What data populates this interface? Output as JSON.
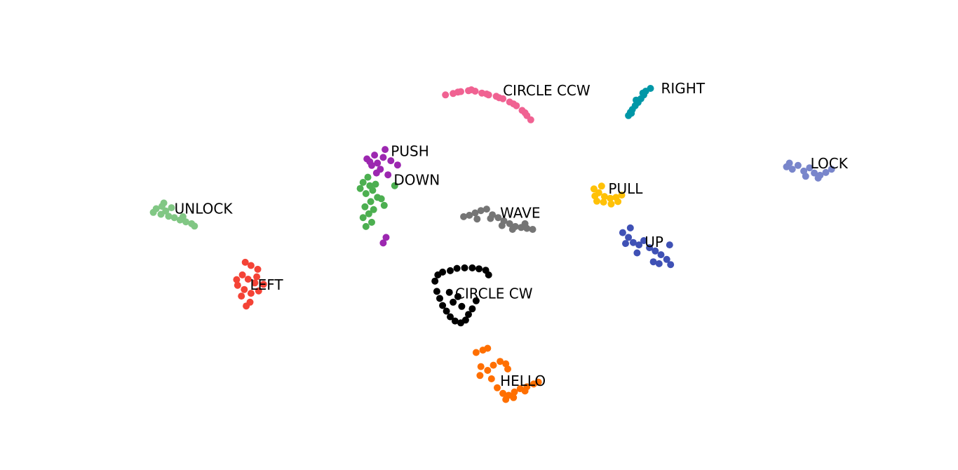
{
  "chart_data": {
    "type": "scatter",
    "title": "",
    "xlabel": "",
    "ylabel": "",
    "xlim": [
      0,
      100
    ],
    "ylim": [
      0,
      100
    ],
    "axes_visible": false,
    "grid": false,
    "legend": "none",
    "series": [
      {
        "name": "CIRCLE CCW",
        "color": "#f06292",
        "label_at": [
          52.5,
          80.5
        ],
        "points": [
          [
            46.5,
            79.8
          ],
          [
            47.3,
            80.1
          ],
          [
            48.1,
            80.5
          ],
          [
            48.9,
            80.7
          ],
          [
            49.6,
            80.6
          ],
          [
            50.3,
            80.2
          ],
          [
            51.0,
            79.8
          ],
          [
            51.8,
            79.5
          ],
          [
            52.5,
            79.0
          ],
          [
            53.2,
            78.3
          ],
          [
            53.9,
            77.5
          ],
          [
            54.5,
            76.5
          ],
          [
            55.0,
            75.4
          ],
          [
            55.4,
            74.5
          ],
          [
            47.8,
            80.4
          ],
          [
            49.2,
            80.9
          ],
          [
            50.8,
            80.0
          ],
          [
            52.1,
            79.2
          ],
          [
            53.6,
            77.9
          ],
          [
            54.8,
            76.0
          ]
        ]
      },
      {
        "name": "RIGHT",
        "color": "#0097a7",
        "label_at": [
          69.0,
          81.0
        ],
        "points": [
          [
            67.4,
            80.6
          ],
          [
            67.9,
            81.2
          ],
          [
            67.2,
            79.8
          ],
          [
            66.9,
            79.0
          ],
          [
            66.6,
            78.2
          ],
          [
            66.3,
            77.5
          ],
          [
            66.0,
            76.7
          ],
          [
            65.8,
            76.1
          ],
          [
            65.6,
            75.4
          ],
          [
            66.4,
            78.7
          ],
          [
            67.1,
            80.2
          ],
          [
            65.9,
            75.9
          ]
        ]
      },
      {
        "name": "PUSH",
        "color": "#9c27b0",
        "label_at": [
          40.8,
          67.6
        ],
        "points": [
          [
            38.3,
            66.2
          ],
          [
            39.1,
            67.0
          ],
          [
            40.0,
            66.5
          ],
          [
            39.4,
            65.3
          ],
          [
            38.8,
            64.8
          ],
          [
            39.7,
            64.0
          ],
          [
            40.8,
            65.8
          ],
          [
            41.5,
            64.9
          ],
          [
            40.2,
            68.2
          ],
          [
            38.6,
            65.6
          ],
          [
            39.3,
            63.2
          ],
          [
            40.5,
            62.8
          ],
          [
            40.3,
            49.5
          ],
          [
            40.0,
            48.3
          ]
        ]
      },
      {
        "name": "DOWN",
        "color": "#4caf50",
        "label_at": [
          41.1,
          61.5
        ],
        "points": [
          [
            37.9,
            61.2
          ],
          [
            38.6,
            60.5
          ],
          [
            37.6,
            59.9
          ],
          [
            38.2,
            58.8
          ],
          [
            38.9,
            59.5
          ],
          [
            39.4,
            58.0
          ],
          [
            38.7,
            57.1
          ],
          [
            38.1,
            56.0
          ],
          [
            39.0,
            55.4
          ],
          [
            38.5,
            54.5
          ],
          [
            37.9,
            53.7
          ],
          [
            38.8,
            52.7
          ],
          [
            39.8,
            57.7
          ],
          [
            39.2,
            60.8
          ],
          [
            38.4,
            62.3
          ],
          [
            41.2,
            60.5
          ],
          [
            40.1,
            56.3
          ],
          [
            38.2,
            51.8
          ]
        ]
      },
      {
        "name": "UNLOCK",
        "color": "#81c784",
        "label_at": [
          18.2,
          55.4
        ],
        "points": [
          [
            16.3,
            55.6
          ],
          [
            16.9,
            56.1
          ],
          [
            17.3,
            55.1
          ],
          [
            16.8,
            54.4
          ],
          [
            17.6,
            54.0
          ],
          [
            18.2,
            53.7
          ],
          [
            18.8,
            53.2
          ],
          [
            19.4,
            52.8
          ],
          [
            20.0,
            52.4
          ],
          [
            17.1,
            56.8
          ],
          [
            16.0,
            54.8
          ],
          [
            17.9,
            55.8
          ],
          [
            19.1,
            53.9
          ],
          [
            20.3,
            51.9
          ]
        ]
      },
      {
        "name": "LOCK",
        "color": "#7986cb",
        "label_at": [
          84.6,
          65.0
        ],
        "points": [
          [
            82.1,
            64.5
          ],
          [
            82.7,
            64.0
          ],
          [
            83.3,
            64.8
          ],
          [
            83.9,
            63.6
          ],
          [
            84.5,
            64.3
          ],
          [
            85.0,
            63.2
          ],
          [
            85.6,
            62.7
          ],
          [
            86.2,
            63.3
          ],
          [
            86.8,
            64.0
          ],
          [
            82.4,
            65.3
          ],
          [
            84.1,
            62.5
          ],
          [
            85.4,
            62.1
          ]
        ]
      },
      {
        "name": "PULL",
        "color": "#ffc107",
        "label_at": [
          63.5,
          59.6
        ],
        "points": [
          [
            62.0,
            59.8
          ],
          [
            62.5,
            59.0
          ],
          [
            63.1,
            58.2
          ],
          [
            63.7,
            57.8
          ],
          [
            64.3,
            58.0
          ],
          [
            64.9,
            58.5
          ],
          [
            62.3,
            57.2
          ],
          [
            63.0,
            57.0
          ],
          [
            63.8,
            56.6
          ],
          [
            64.5,
            57.1
          ],
          [
            62.8,
            60.4
          ],
          [
            62.1,
            58.3
          ]
        ]
      },
      {
        "name": "WAVE",
        "color": "#757575",
        "label_at": [
          52.2,
          54.5
        ],
        "points": [
          [
            48.4,
            53.9
          ],
          [
            49.0,
            54.2
          ],
          [
            49.6,
            54.7
          ],
          [
            50.2,
            55.2
          ],
          [
            50.8,
            55.5
          ],
          [
            51.4,
            54.3
          ],
          [
            52.0,
            53.7
          ],
          [
            52.6,
            53.0
          ],
          [
            53.2,
            52.4
          ],
          [
            53.8,
            51.8
          ],
          [
            54.4,
            51.6
          ],
          [
            55.0,
            51.4
          ],
          [
            55.6,
            51.2
          ],
          [
            49.8,
            53.4
          ],
          [
            51.2,
            53.5
          ],
          [
            52.4,
            52.0
          ],
          [
            53.5,
            51.2
          ],
          [
            54.8,
            52.4
          ]
        ]
      },
      {
        "name": "UP",
        "color": "#3f51b5",
        "label_at": [
          67.3,
          48.3
        ],
        "points": [
          [
            65.0,
            50.5
          ],
          [
            65.6,
            49.5
          ],
          [
            66.1,
            48.4
          ],
          [
            66.7,
            47.9
          ],
          [
            67.2,
            48.8
          ],
          [
            67.8,
            47.3
          ],
          [
            68.4,
            46.6
          ],
          [
            69.0,
            45.8
          ],
          [
            69.6,
            44.8
          ],
          [
            68.8,
            43.9
          ],
          [
            68.2,
            44.3
          ],
          [
            69.9,
            47.9
          ],
          [
            65.3,
            48.2
          ],
          [
            66.5,
            46.2
          ],
          [
            70.0,
            43.7
          ],
          [
            65.8,
            51.5
          ]
        ]
      },
      {
        "name": "LEFT",
        "color": "#f44336",
        "label_at": [
          26.1,
          39.2
        ],
        "points": [
          [
            25.6,
            44.2
          ],
          [
            26.2,
            43.5
          ],
          [
            26.9,
            42.7
          ],
          [
            25.3,
            41.5
          ],
          [
            25.9,
            40.6
          ],
          [
            26.6,
            39.8
          ],
          [
            24.8,
            39.3
          ],
          [
            25.5,
            38.4
          ],
          [
            26.2,
            37.6
          ],
          [
            27.0,
            38.1
          ],
          [
            27.5,
            39.5
          ],
          [
            25.2,
            37.0
          ],
          [
            26.1,
            35.7
          ],
          [
            25.7,
            34.9
          ],
          [
            24.7,
            40.5
          ],
          [
            26.8,
            41.1
          ]
        ]
      },
      {
        "name": "CIRCLE CW",
        "color": "#000000",
        "label_at": [
          47.5,
          37.3
        ],
        "points": [
          [
            45.4,
            40.2
          ],
          [
            45.7,
            41.5
          ],
          [
            46.2,
            42.1
          ],
          [
            47.0,
            42.4
          ],
          [
            47.7,
            42.9
          ],
          [
            48.5,
            43.0
          ],
          [
            49.3,
            43.0
          ],
          [
            50.0,
            42.8
          ],
          [
            50.7,
            42.5
          ],
          [
            51.0,
            41.5
          ],
          [
            45.6,
            38.0
          ],
          [
            45.9,
            36.5
          ],
          [
            46.2,
            35.0
          ],
          [
            46.6,
            33.8
          ],
          [
            47.0,
            32.6
          ],
          [
            47.5,
            31.7
          ],
          [
            48.1,
            31.3
          ],
          [
            48.6,
            31.9
          ],
          [
            48.9,
            33.1
          ],
          [
            49.3,
            34.3
          ],
          [
            47.3,
            35.7
          ],
          [
            48.2,
            34.8
          ],
          [
            47.8,
            36.9
          ],
          [
            46.9,
            37.8
          ],
          [
            49.7,
            36.0
          ]
        ]
      },
      {
        "name": "HELLO",
        "color": "#ff6f00",
        "label_at": [
          52.2,
          18.7
        ],
        "points": [
          [
            49.7,
            25.0
          ],
          [
            50.4,
            25.5
          ],
          [
            50.9,
            25.9
          ],
          [
            50.2,
            22.0
          ],
          [
            50.9,
            21.2
          ],
          [
            51.5,
            22.3
          ],
          [
            52.2,
            23.1
          ],
          [
            52.8,
            22.6
          ],
          [
            53.0,
            21.5
          ],
          [
            51.3,
            19.4
          ],
          [
            51.9,
            17.5
          ],
          [
            52.5,
            16.3
          ],
          [
            53.1,
            15.9
          ],
          [
            53.7,
            16.6
          ],
          [
            54.3,
            17.3
          ],
          [
            55.0,
            17.7
          ],
          [
            55.7,
            18.3
          ],
          [
            56.2,
            18.7
          ],
          [
            50.1,
            20.1
          ],
          [
            52.8,
            15.0
          ],
          [
            53.6,
            15.4
          ],
          [
            54.8,
            16.8
          ]
        ]
      }
    ]
  }
}
